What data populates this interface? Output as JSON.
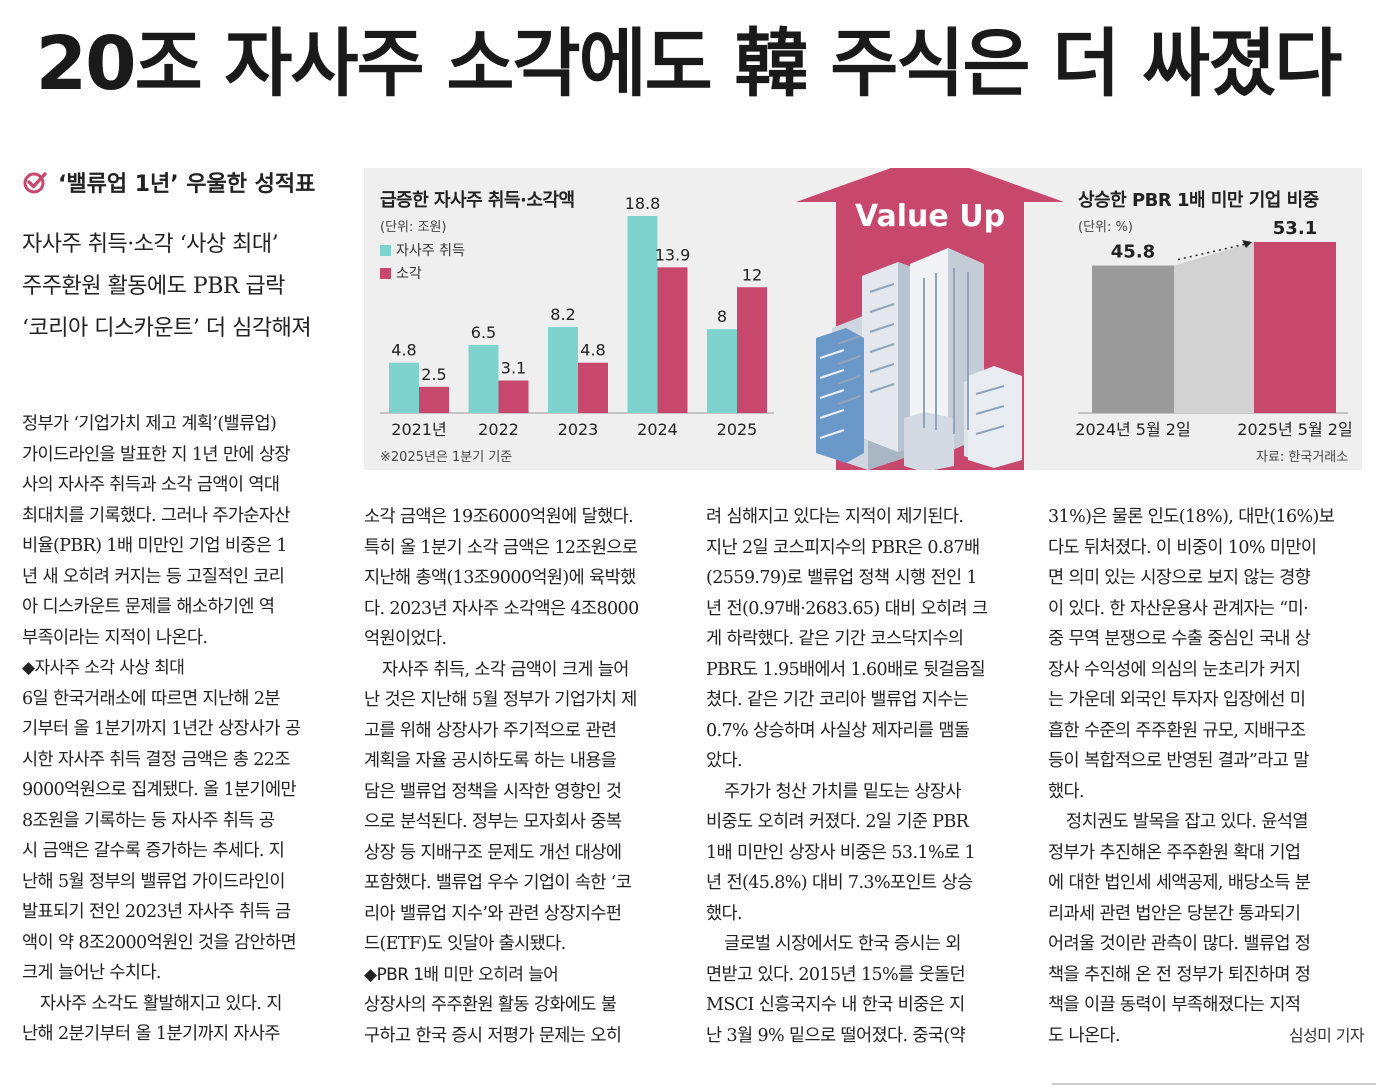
{
  "headline": "20조 자사주 소각에도 韓 주식은 더 싸졌다",
  "kicker": "‘밸류업 1년’ 우울한 성적표",
  "subhead": [
    "자사주 취득·소각 ‘사상 최대’",
    "주주환원 활동에도 PBR 급락",
    "‘코리아 디스카운트’ 더 심각해져"
  ],
  "graphic": {
    "badge": "Value Up",
    "colors": {
      "acquisition": "#7fd3cf",
      "cancellation": "#c8486d",
      "gray_bar": "#9b9b9b",
      "arrow": "#c8486d"
    },
    "left_title": "급증한 자사주 취득·소각액",
    "left_unit": "(단위: 조원)",
    "legend": [
      "자사주 취득",
      "소각"
    ],
    "left_note": "※2025년은 1분기 기준",
    "right_title": "상승한 PBR 1배 미만 기업 비중",
    "right_unit": "(단위: %)",
    "source": "자료: 한국거래소"
  },
  "chart_data": [
    {
      "type": "bar",
      "title": "급증한 자사주 취득·소각액",
      "unit": "(단위: 조원)",
      "categories": [
        "2021년",
        "2022",
        "2023",
        "2024",
        "2025"
      ],
      "series": [
        {
          "name": "자사주 취득",
          "values": [
            4.8,
            6.5,
            8.2,
            18.8,
            8
          ]
        },
        {
          "name": "소각",
          "values": [
            2.5,
            3.1,
            4.8,
            13.9,
            12
          ]
        }
      ],
      "value_labels": {
        "자사주 취득": [
          "4.8",
          "6.5",
          "8.2",
          "18.8",
          "8"
        ],
        "소각": [
          "2.5",
          "3.1",
          "4.8",
          "13.9",
          "12"
        ]
      },
      "legend": "top-left",
      "note": "※2025년은 1분기 기준"
    },
    {
      "type": "bar",
      "title": "상승한 PBR 1배 미만 기업 비중",
      "unit": "(단위: %)",
      "categories": [
        "2024년 5월 2일",
        "2025년 5월 2일"
      ],
      "values": [
        45.8,
        53.1
      ],
      "value_labels": [
        "45.8",
        "53.1"
      ]
    }
  ],
  "columns": [
    [
      {
        "t": "정부가 ‘기업가치 제고 계획’(밸류업)"
      },
      {
        "t": "가이드라인을 발표한 지 1년 만에 상장"
      },
      {
        "t": "사의 자사주 취득과 소각 금액이 역대"
      },
      {
        "t": "최대치를 기록했다. 그러나 주가순자산"
      },
      {
        "t": "비율(PBR) 1배 미만인 기업 비중은 1"
      },
      {
        "t": "년 새 오히려 커지는 등 고질적인 코리"
      },
      {
        "t": "아 디스카운트 문제를 해소하기엔 역"
      },
      {
        "t": "부족이라는 지적이 나온다."
      },
      {
        "t": "◆자사주 소각 사상 최대",
        "sec": true
      },
      {
        "t": "6일 한국거래소에 따르면 지난해 2분"
      },
      {
        "t": "기부터 올 1분기까지 1년간 상장사가 공"
      },
      {
        "t": "시한 자사주 취득 결정 금액은 총 22조"
      },
      {
        "t": "9000억원으로 집계됐다. 올 1분기에만"
      },
      {
        "t": "8조원을 기록하는 등 자사주 취득 공"
      },
      {
        "t": "시 금액은 갈수록 증가하는 추세다. 지"
      },
      {
        "t": "난해 5월 정부의 밸류업 가이드라인이"
      },
      {
        "t": "발표되기 전인 2023년 자사주 취득 금"
      },
      {
        "t": "액이 약 8조2000억원인 것을 감안하면"
      },
      {
        "t": "크게 늘어난 수치다."
      },
      {
        "t": "자사주 소각도 활발해지고 있다. 지",
        "ind": true
      },
      {
        "t": "난해 2분기부터 올 1분기까지 자사주"
      }
    ],
    [
      {
        "t": "소각 금액은 19조6000억원에 달했다."
      },
      {
        "t": "특히 올 1분기 소각 금액은 12조원으로"
      },
      {
        "t": "지난해 총액(13조9000억원)에 육박했"
      },
      {
        "t": "다. 2023년 자사주 소각액은 4조8000"
      },
      {
        "t": "억원이었다."
      },
      {
        "t": "자사주 취득, 소각 금액이 크게 늘어",
        "ind": true
      },
      {
        "t": "난 것은 지난해 5월 정부가 기업가치 제"
      },
      {
        "t": "고를 위해 상장사가 주기적으로 관련"
      },
      {
        "t": "계획을 자율 공시하도록 하는 내용을"
      },
      {
        "t": "담은 밸류업 정책을 시작한 영향인 것"
      },
      {
        "t": "으로 분석된다. 정부는 모자회사 중복"
      },
      {
        "t": "상장 등 지배구조 문제도 개선 대상에"
      },
      {
        "t": "포함했다. 밸류업 우수 기업이 속한 ‘코"
      },
      {
        "t": "리아 밸류업 지수’와 관련 상장지수펀"
      },
      {
        "t": "드(ETF)도 잇달아 출시됐다."
      },
      {
        "t": "◆PBR 1배 미만 오히려 늘어",
        "sec": true
      },
      {
        "t": "상장사의 주주환원 활동 강화에도 불"
      },
      {
        "t": "구하고 한국 증시 저평가 문제는 오히"
      }
    ],
    [
      {
        "t": "려 심해지고 있다는 지적이 제기된다."
      },
      {
        "t": "지난 2일 코스피지수의 PBR은 0.87배"
      },
      {
        "t": "(2559.79)로 밸류업 정책 시행 전인 1"
      },
      {
        "t": "년 전(0.97배·2683.65) 대비 오히려 크"
      },
      {
        "t": "게 하락했다. 같은 기간 코스닥지수의"
      },
      {
        "t": "PBR도 1.95배에서 1.60배로 뒷걸음질"
      },
      {
        "t": "쳤다. 같은 기간 코리아 밸류업 지수는"
      },
      {
        "t": "0.7% 상승하며 사실상 제자리를 맴돌"
      },
      {
        "t": "았다."
      },
      {
        "t": "주가가 청산 가치를 밑도는 상장사",
        "ind": true
      },
      {
        "t": "비중도 오히려 커졌다. 2일 기준 PBR"
      },
      {
        "t": "1배 미만인 상장사 비중은 53.1%로 1"
      },
      {
        "t": "년 전(45.8%) 대비 7.3%포인트 상승"
      },
      {
        "t": "했다."
      },
      {
        "t": "글로벌 시장에서도 한국 증시는 외",
        "ind": true
      },
      {
        "t": "면받고 있다. 2015년 15%를 웃돌던"
      },
      {
        "t": "MSCI 신흥국지수 내 한국 비중은 지"
      },
      {
        "t": "난 3월 9% 밑으로 떨어졌다. 중국(약"
      }
    ],
    [
      {
        "t": "31%)은 물론 인도(18%), 대만(16%)보"
      },
      {
        "t": "다도 뒤처졌다. 이 비중이 10% 미만이"
      },
      {
        "t": "면 의미 있는 시장으로 보지 않는 경향"
      },
      {
        "t": "이 있다. 한 자산운용사 관계자는 “미·"
      },
      {
        "t": "중 무역 분쟁으로 수출 중심인 국내 상"
      },
      {
        "t": "장사 수익성에 의심의 눈초리가 커지"
      },
      {
        "t": "는 가운데 외국인 투자자 입장에선 미"
      },
      {
        "t": "흡한 수준의 주주환원 규모, 지배구조"
      },
      {
        "t": "등이 복합적으로 반영된 결과”라고 말"
      },
      {
        "t": "했다."
      },
      {
        "t": "정치권도 발목을 잡고 있다. 윤석열",
        "ind": true
      },
      {
        "t": "정부가 추진해온 주주환원 확대 기업"
      },
      {
        "t": "에 대한 법인세 세액공제, 배당소득 분"
      },
      {
        "t": "리과세 관련 법안은 당분간 통과되기"
      },
      {
        "t": "어려울 것이란 관측이 많다. 밸류업 정"
      },
      {
        "t": "책을 추진해 온 전 정부가 퇴진하며 정"
      },
      {
        "t": "책을 이끌 동력이 부족해졌다는 지적"
      },
      {
        "t": "도 나온다."
      }
    ]
  ],
  "byline": "심성미 기자"
}
